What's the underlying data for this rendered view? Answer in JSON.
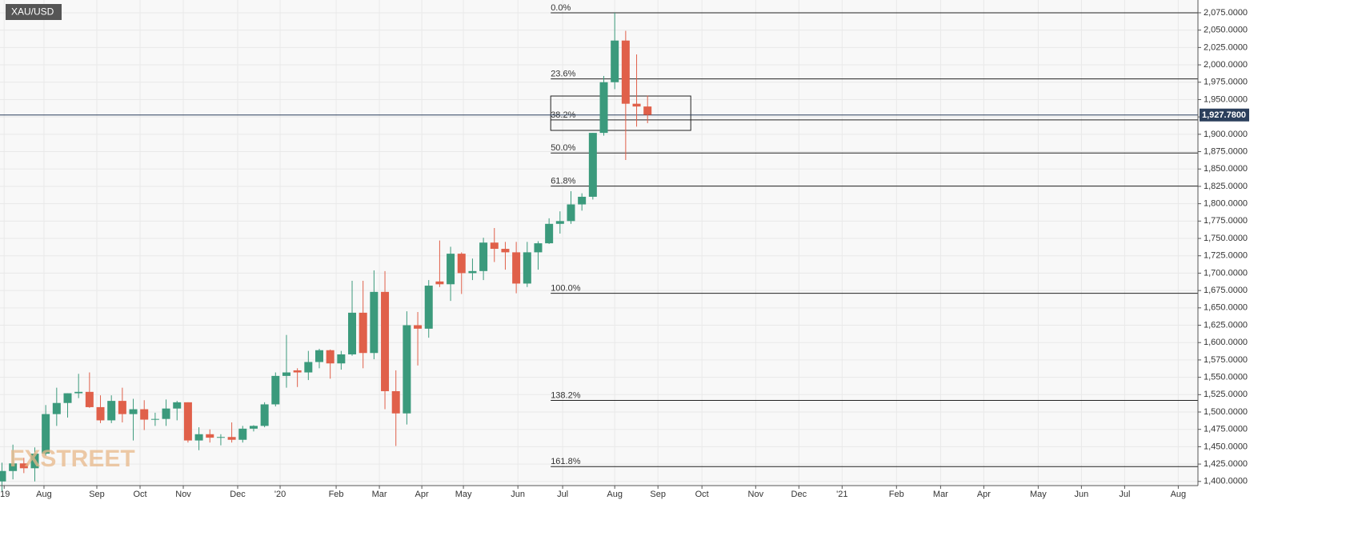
{
  "chart_data": {
    "type": "candlestick",
    "title": "XAU/USD",
    "watermark": "FXSTREET",
    "up_color": "#3b9a7c",
    "down_color": "#e0604a",
    "x": [
      0,
      1,
      2,
      3,
      4,
      5,
      6,
      7,
      8,
      9,
      10,
      11,
      12,
      13,
      14,
      15,
      16,
      17,
      18,
      19,
      20,
      21,
      22,
      23,
      24,
      25,
      26,
      27,
      28,
      29,
      30,
      31,
      32,
      33,
      34,
      35,
      36,
      37,
      38,
      39,
      40,
      41,
      42,
      43,
      44,
      45,
      46,
      47,
      48,
      49,
      50,
      51,
      52,
      53,
      54,
      55,
      56,
      57,
      58,
      59
    ],
    "open": [
      1400,
      1415,
      1426,
      1419,
      1440,
      1497,
      1513,
      1527,
      1529,
      1507,
      1488,
      1516,
      1497,
      1504,
      1489,
      1490,
      1505,
      1514,
      1459,
      1468,
      1463,
      1464,
      1460,
      1476,
      1480,
      1511,
      1552,
      1560,
      1557,
      1572,
      1589,
      1570,
      1583,
      1643,
      1585,
      1673,
      1530,
      1498,
      1625,
      1620,
      1688,
      1684,
      1728,
      1700,
      1703,
      1744,
      1735,
      1730,
      1685,
      1730,
      1743,
      1771,
      1775,
      1799,
      1810,
      1902,
      1975,
      2035,
      1944,
      1940
    ],
    "high": [
      1427,
      1453,
      1434,
      1449,
      1510,
      1535,
      1527,
      1555,
      1557,
      1524,
      1524,
      1535,
      1519,
      1517,
      1499,
      1518,
      1516,
      1514,
      1478,
      1475,
      1468,
      1485,
      1480,
      1481,
      1514,
      1557,
      1611,
      1563,
      1588,
      1591,
      1590,
      1588,
      1689,
      1689,
      1704,
      1703,
      1560,
      1645,
      1644,
      1690,
      1747,
      1738,
      1730,
      1721,
      1751,
      1765,
      1745,
      1745,
      1745,
      1746,
      1779,
      1789,
      1818,
      1815,
      1902,
      1984,
      2075,
      2049,
      2015,
      1956
    ],
    "low": [
      1386,
      1403,
      1412,
      1400,
      1437,
      1480,
      1492,
      1520,
      1506,
      1484,
      1484,
      1485,
      1459,
      1474,
      1480,
      1480,
      1488,
      1456,
      1445,
      1456,
      1452,
      1456,
      1456,
      1472,
      1478,
      1508,
      1535,
      1536,
      1546,
      1563,
      1548,
      1561,
      1581,
      1563,
      1576,
      1504,
      1451,
      1482,
      1567,
      1607,
      1680,
      1660,
      1670,
      1690,
      1690,
      1716,
      1705,
      1671,
      1680,
      1705,
      1742,
      1757,
      1771,
      1790,
      1806,
      1898,
      1965,
      1863,
      1911,
      1916
    ],
    "close": [
      1415,
      1426,
      1419,
      1440,
      1497,
      1513,
      1527,
      1529,
      1507,
      1488,
      1516,
      1497,
      1504,
      1489,
      1490,
      1505,
      1514,
      1459,
      1468,
      1463,
      1464,
      1460,
      1476,
      1480,
      1511,
      1552,
      1557,
      1557,
      1572,
      1589,
      1570,
      1583,
      1643,
      1585,
      1673,
      1530,
      1498,
      1625,
      1620,
      1682,
      1684,
      1728,
      1700,
      1703,
      1744,
      1735,
      1730,
      1685,
      1730,
      1743,
      1771,
      1775,
      1799,
      1810,
      1902,
      1975,
      2035,
      1944,
      1940,
      1928
    ],
    "xlim": [
      -0.18,
      109.3
    ],
    "xticks": [
      {
        "value": 0.2,
        "label": "'19"
      },
      {
        "value": 3.84,
        "label": "Aug"
      },
      {
        "value": 8.67,
        "label": "Sep"
      },
      {
        "value": 12.62,
        "label": "Oct"
      },
      {
        "value": 16.57,
        "label": "Nov"
      },
      {
        "value": 21.54,
        "label": "Dec"
      },
      {
        "value": 25.42,
        "label": "'20"
      },
      {
        "value": 30.54,
        "label": "Feb"
      },
      {
        "value": 34.49,
        "label": "Mar"
      },
      {
        "value": 38.37,
        "label": "Apr"
      },
      {
        "value": 42.17,
        "label": "May"
      },
      {
        "value": 47.15,
        "label": "Jun"
      },
      {
        "value": 51.24,
        "label": "Jul"
      },
      {
        "value": 56.0,
        "label": "Aug"
      },
      {
        "value": 59.95,
        "label": "Sep"
      },
      {
        "value": 63.97,
        "label": "Oct"
      },
      {
        "value": 68.88,
        "label": "Nov"
      },
      {
        "value": 72.83,
        "label": "Dec"
      },
      {
        "value": 76.78,
        "label": "'21"
      },
      {
        "value": 81.75,
        "label": "Feb"
      },
      {
        "value": 85.78,
        "label": "Mar"
      },
      {
        "value": 89.73,
        "label": "Apr"
      },
      {
        "value": 94.7,
        "label": "May"
      },
      {
        "value": 98.65,
        "label": "Jun"
      },
      {
        "value": 102.6,
        "label": "Jul"
      },
      {
        "value": 107.5,
        "label": "Aug"
      }
    ],
    "ylim": [
      1394,
      2093.4
    ],
    "yticks": [
      {
        "value": 1400,
        "label": "1,400.0000"
      },
      {
        "value": 1425,
        "label": "1,425.0000"
      },
      {
        "value": 1450,
        "label": "1,450.0000"
      },
      {
        "value": 1475,
        "label": "1,475.0000"
      },
      {
        "value": 1500,
        "label": "1,500.0000"
      },
      {
        "value": 1525,
        "label": "1,525.0000"
      },
      {
        "value": 1550,
        "label": "1,550.0000"
      },
      {
        "value": 1575,
        "label": "1,575.0000"
      },
      {
        "value": 1600,
        "label": "1,600.0000"
      },
      {
        "value": 1625,
        "label": "1,625.0000"
      },
      {
        "value": 1650,
        "label": "1,650.0000"
      },
      {
        "value": 1675,
        "label": "1,675.0000"
      },
      {
        "value": 1700,
        "label": "1,700.0000"
      },
      {
        "value": 1725,
        "label": "1,725.0000"
      },
      {
        "value": 1750,
        "label": "1,750.0000"
      },
      {
        "value": 1775,
        "label": "1,775.0000"
      },
      {
        "value": 1800,
        "label": "1,800.0000"
      },
      {
        "value": 1825,
        "label": "1,825.0000"
      },
      {
        "value": 1850,
        "label": "1,850.0000"
      },
      {
        "value": 1875,
        "label": "1,875.0000"
      },
      {
        "value": 1900,
        "label": "1,900.0000"
      },
      {
        "value": 1925,
        "label": "1,925.0000"
      },
      {
        "value": 1950,
        "label": "1,950.0000"
      },
      {
        "value": 1975,
        "label": "1,975.0000"
      },
      {
        "value": 2000,
        "label": "2,000.0000"
      },
      {
        "value": 2025,
        "label": "2,025.0000"
      },
      {
        "value": 2050,
        "label": "2,050.0000"
      },
      {
        "value": 2075,
        "label": "2,075.0000"
      }
    ],
    "grid": true,
    "last_price": {
      "value": 1927.78,
      "label": "1,927.7800"
    },
    "fibonacci": {
      "x_start": 50.15,
      "levels": [
        {
          "value": 0,
          "label": "0.0%"
        },
        {
          "value": 23.6,
          "label": "23.6%"
        },
        {
          "value": 38.2,
          "label": "38.2%"
        },
        {
          "value": 50,
          "label": "50.0%"
        },
        {
          "value": 61.8,
          "label": "61.8%"
        },
        {
          "value": 100,
          "label": "100.0%"
        },
        {
          "value": 138.2,
          "label": "138.2%"
        },
        {
          "value": 161.8,
          "label": "161.8%"
        }
      ],
      "prices": [
        2075,
        1979.7,
        1920.7,
        1873,
        1825.3,
        1671,
        1516.7,
        1421.3
      ]
    },
    "box": {
      "x": [
        50.15,
        62.95
      ],
      "y": [
        1905.6,
        1955.1
      ]
    }
  }
}
